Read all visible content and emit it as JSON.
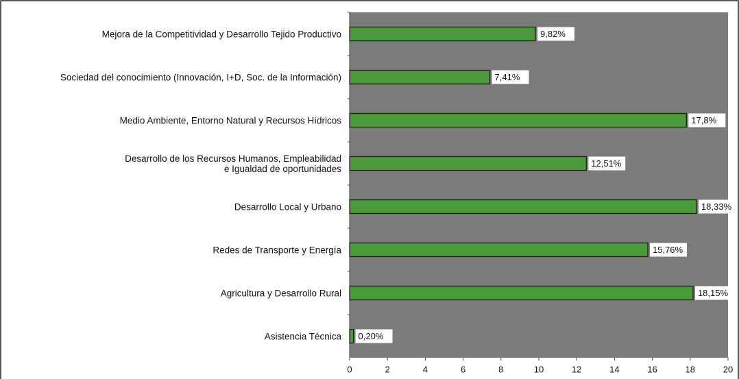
{
  "chart_data": {
    "type": "bar",
    "orientation": "horizontal",
    "categories": [
      "Mejora de la Competitividad y Desarrollo Tejido Productivo",
      "Sociedad del conocimiento (Innovación, I+D, Soc. de la Información)",
      "Medio Ambiente, Entorno Natural y Recursos Hídricos",
      "Desarrollo de los Recursos Humanos, Empleabilidad\ne Igualdad de oportunidades",
      "Desarrollo Local y Urbano",
      "Redes de Transporte y Energía",
      "Agricultura y Desarrollo Rural",
      "Asistencia Técnica"
    ],
    "values": [
      9.82,
      7.41,
      17.8,
      12.51,
      18.33,
      15.76,
      18.15,
      0.2
    ],
    "value_labels": [
      "9,82%",
      "7,41%",
      "17,8%",
      "12,51%",
      "18,33%",
      "15,76%",
      "18,15%",
      "0,20%"
    ],
    "color": "#4a9a3a",
    "plot_background": "#7b7b7b",
    "xlim": [
      0,
      20
    ],
    "xticks": [
      0,
      2,
      4,
      6,
      8,
      10,
      12,
      14,
      16,
      18,
      20
    ]
  }
}
